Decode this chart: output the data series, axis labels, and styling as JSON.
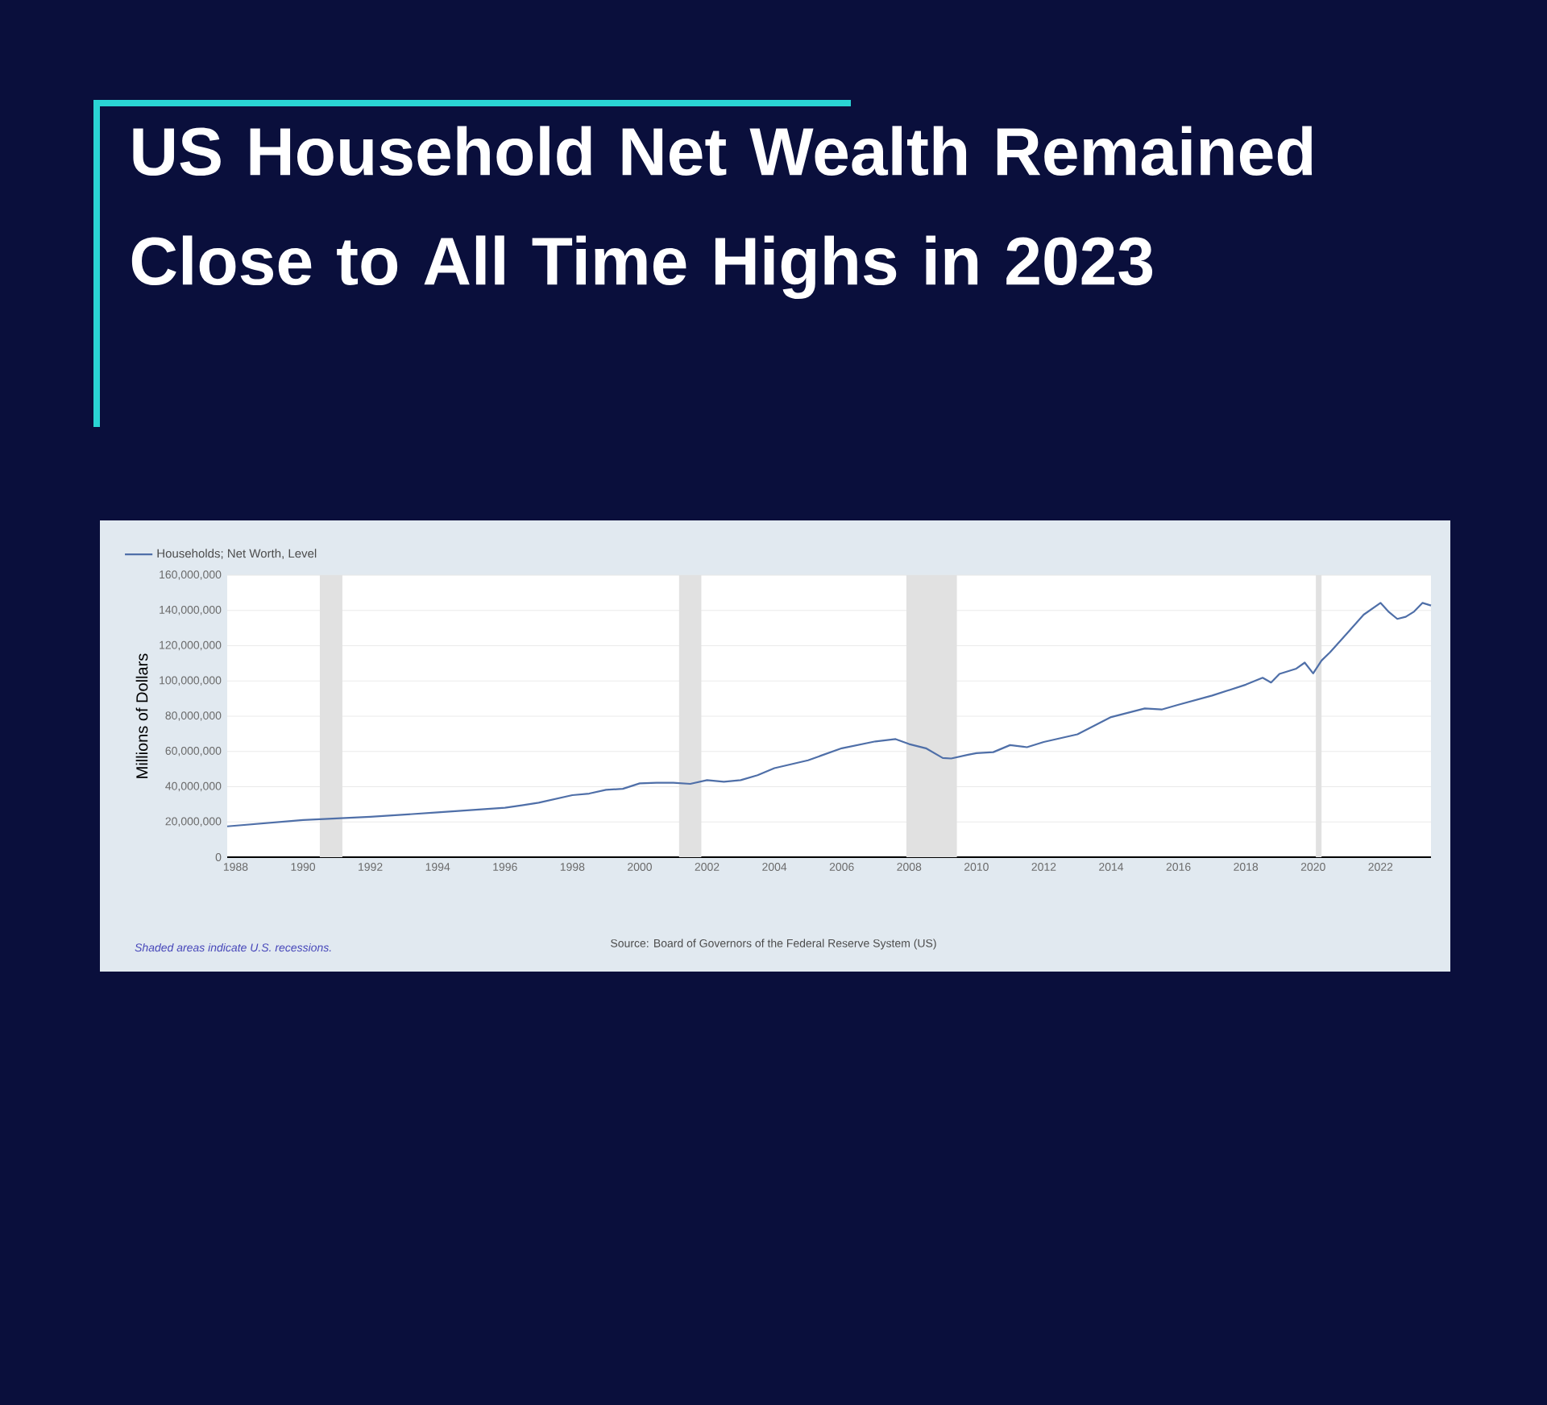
{
  "chart_data": {
    "type": "line",
    "title": "US Household Net Wealth Remained Close to All Time Highs in 2023",
    "ylabel": "Millions of Dollars",
    "x": [
      1987.75,
      1990,
      1992,
      1994,
      1996,
      1996.5,
      1997,
      1998,
      1998.5,
      1999,
      1999.5,
      2000,
      2000.5,
      2001,
      2001.5,
      2002,
      2002.5,
      2003,
      2003.5,
      2004,
      2005,
      2006,
      2007,
      2007.6,
      2008,
      2008.5,
      2009,
      2009.25,
      2009.75,
      2010,
      2010.5,
      2011,
      2011.5,
      2012,
      2013,
      2014,
      2015,
      2015.5,
      2016,
      2017,
      2018,
      2018.5,
      2018.75,
      2019,
      2019.5,
      2019.75,
      2020,
      2020.25,
      2020.5,
      2021,
      2021.5,
      2022,
      2022.25,
      2022.5,
      2022.75,
      2023,
      2023.25,
      2023.5
    ],
    "series": [
      {
        "name": "Households; Net Worth, Level",
        "color": "#4f6fa8",
        "values": [
          17500000,
          21100000,
          22900000,
          25400000,
          28100000,
          29400000,
          30900000,
          35200000,
          36100000,
          38200000,
          38800000,
          41900000,
          42200000,
          42200000,
          41600000,
          43700000,
          42800000,
          43700000,
          46500000,
          50500000,
          55000000,
          61800000,
          65700000,
          67000000,
          64200000,
          61800000,
          56300000,
          56000000,
          58100000,
          59000000,
          59600000,
          63600000,
          62400000,
          65400000,
          69700000,
          79500000,
          84400000,
          83800000,
          86500000,
          91700000,
          97900000,
          101800000,
          99100000,
          104000000,
          107000000,
          110400000,
          104300000,
          111600000,
          116200000,
          126900000,
          137600000,
          144300000,
          139100000,
          135200000,
          136400000,
          139400000,
          144300000,
          142800000
        ]
      }
    ],
    "xlim": [
      1987.75,
      2023.5
    ],
    "xticks": [
      1988,
      1990,
      1992,
      1994,
      1996,
      1998,
      2000,
      2002,
      2004,
      2006,
      2008,
      2010,
      2012,
      2014,
      2016,
      2018,
      2020,
      2022
    ],
    "ylim": [
      0,
      160000000
    ],
    "yticks": [
      {
        "value": 0,
        "label": "0"
      },
      {
        "value": 20000000,
        "label": "20,000,000"
      },
      {
        "value": 40000000,
        "label": "40,000,000"
      },
      {
        "value": 60000000,
        "label": "60,000,000"
      },
      {
        "value": 80000000,
        "label": "80,000,000"
      },
      {
        "value": 100000000,
        "label": "100,000,000"
      },
      {
        "value": 120000000,
        "label": "120,000,000"
      },
      {
        "value": 140000000,
        "label": "140,000,000"
      },
      {
        "value": 160000000,
        "label": "160,000,000"
      }
    ],
    "bands": [
      {
        "axis": "x",
        "from": 1990.5,
        "to": 1991.17,
        "color": "#e1e1e1"
      },
      {
        "axis": "x",
        "from": 2001.17,
        "to": 2001.83,
        "color": "#e1e1e1"
      },
      {
        "axis": "x",
        "from": 2007.92,
        "to": 2009.42,
        "color": "#e1e1e1"
      },
      {
        "axis": "x",
        "from": 2020.08,
        "to": 2020.25,
        "color": "#e1e1e1"
      }
    ],
    "grid": "y",
    "legend": "top left",
    "annotations": [
      "Shaded areas indicate U.S. recessions.",
      "Source: Board of Governors of the Federal Reserve System (US)"
    ]
  }
}
